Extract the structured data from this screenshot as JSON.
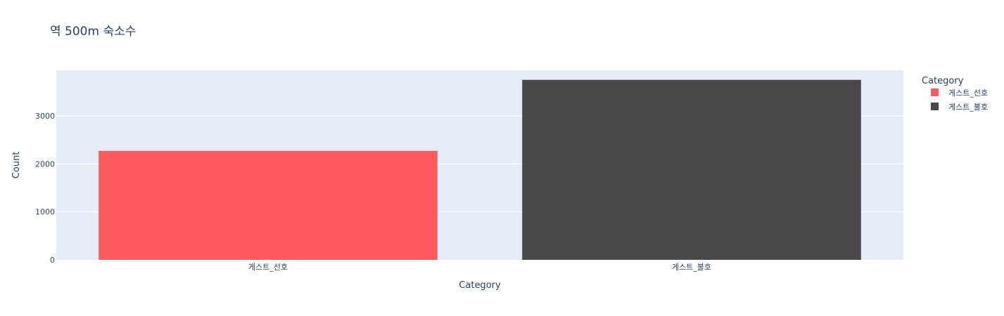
{
  "chart_data": {
    "type": "bar",
    "title": "역 500m 숙소수",
    "xlabel": "Category",
    "ylabel": "Count",
    "categories": [
      "게스트_선호",
      "게스트_불호"
    ],
    "values": [
      2270,
      3750
    ],
    "colors": [
      "#ff5a5f",
      "#484848"
    ],
    "ylim": [
      0,
      3950
    ],
    "yticks": [
      0,
      1000,
      2000,
      3000
    ],
    "grid": true,
    "plot_background": "#e5ecf6",
    "legend": {
      "title": "Category",
      "placement": "right",
      "entries": [
        "게스트_선호",
        "게스트_불호"
      ]
    }
  }
}
